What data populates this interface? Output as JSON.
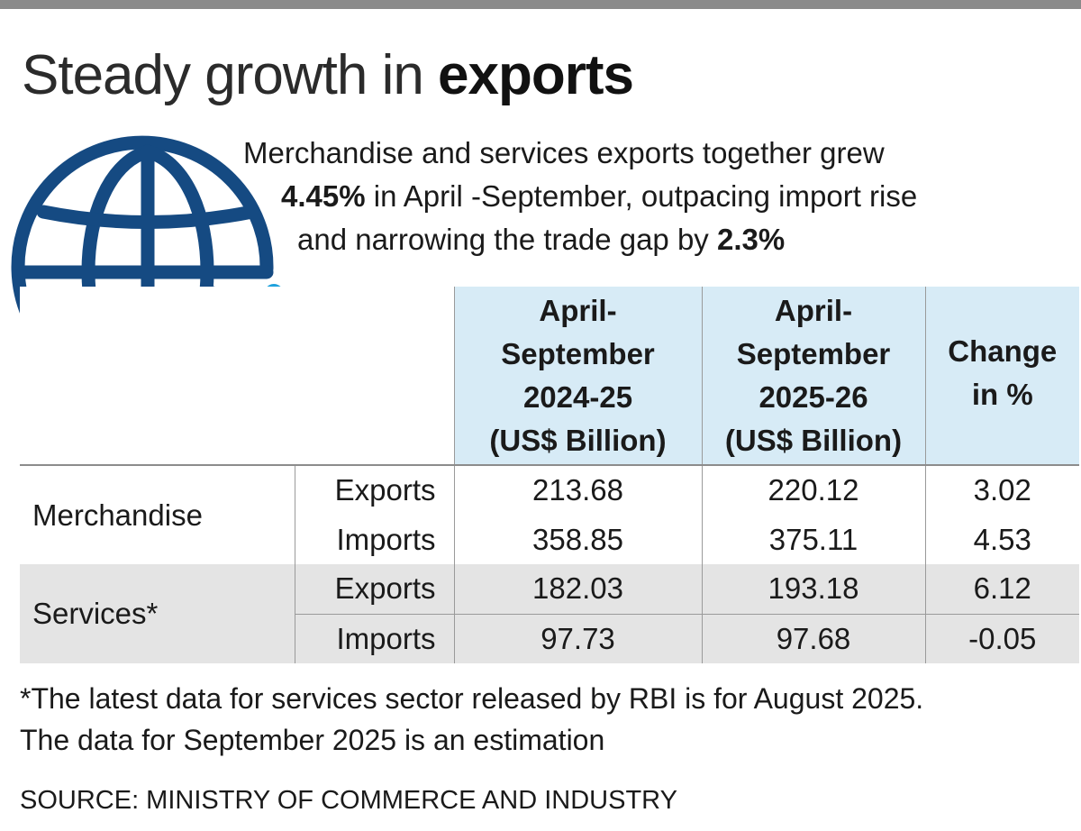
{
  "header": {
    "title_light": "Steady growth in ",
    "title_bold": "exports",
    "subtitle": {
      "line1": "Merchandise and services exports together grew",
      "line2_bold": "4.45%",
      "line2_rest": " in April -September, outpacing import rise",
      "line3_text": "and narrowing the trade gap by ",
      "line3_bold": "2.3%"
    }
  },
  "icon": "globe-with-exchange-arrows-icon",
  "colors": {
    "globe": "#154a82",
    "arrows": "#1ea1dd",
    "header_bg": "#d7ebf6",
    "services_bg": "#e4e4e4"
  },
  "chart_data": {
    "type": "table",
    "columns": [
      {
        "lines": [
          "April-",
          "September",
          "2024-25",
          "(US$ Billion)"
        ]
      },
      {
        "lines": [
          "April-",
          "September",
          "2025-26",
          "(US$ Billion)"
        ]
      },
      {
        "lines": [
          "Change",
          "in %"
        ]
      }
    ],
    "groups": [
      {
        "name": "Merchandise",
        "rows": [
          {
            "label": "Exports",
            "values": [
              "213.68",
              "220.12",
              "3.02"
            ]
          },
          {
            "label": "Imports",
            "values": [
              "358.85",
              "375.11",
              "4.53"
            ]
          }
        ]
      },
      {
        "name": "Services*",
        "rows": [
          {
            "label": "Exports",
            "values": [
              "182.03",
              "193.18",
              "6.12"
            ]
          },
          {
            "label": "Imports",
            "values": [
              "97.73",
              "97.68",
              "-0.05"
            ]
          }
        ]
      }
    ]
  },
  "footnote": {
    "line1": "*The latest data for services sector released by RBI is for August 2025.",
    "line2": "The data for September 2025 is an estimation"
  },
  "source": "SOURCE: MINISTRY OF COMMERCE AND INDUSTRY"
}
